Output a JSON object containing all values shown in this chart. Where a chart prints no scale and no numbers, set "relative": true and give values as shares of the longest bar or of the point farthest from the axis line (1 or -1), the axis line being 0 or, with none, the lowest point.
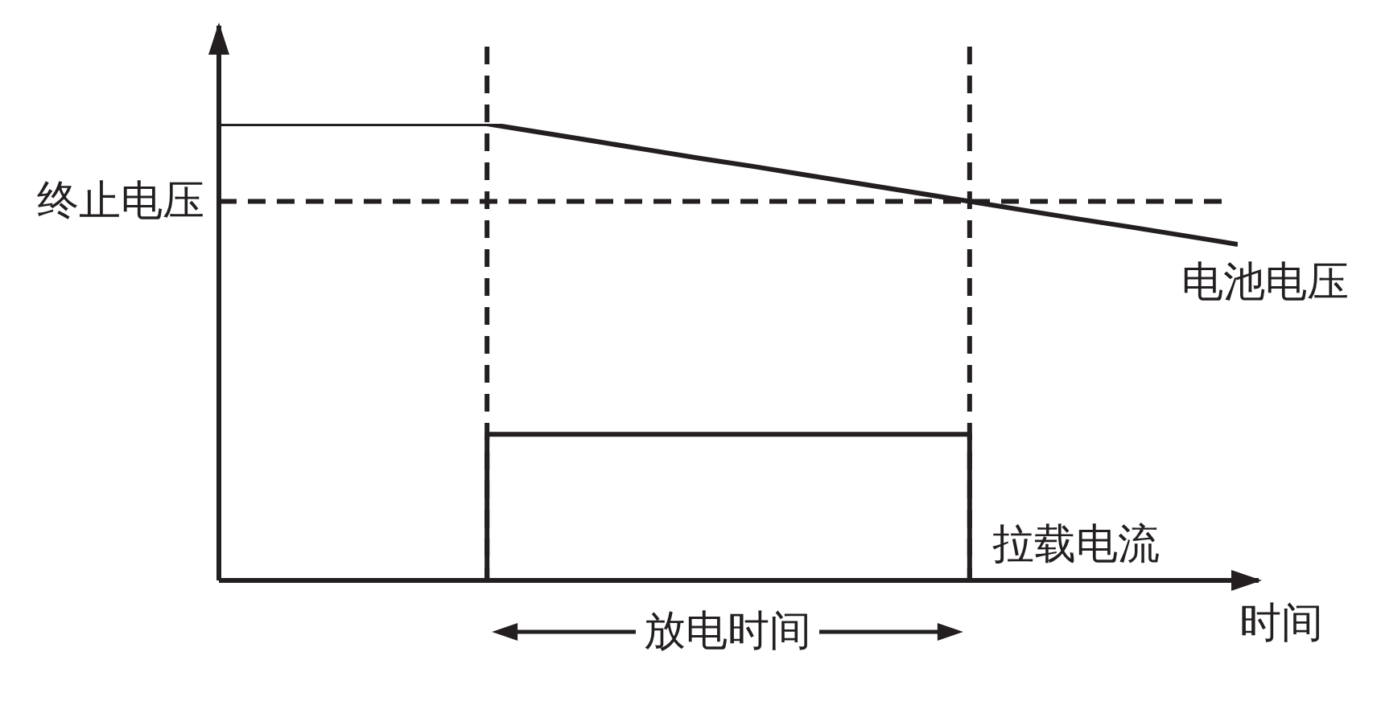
{
  "chart_data": {
    "type": "line",
    "relative": true,
    "xlabel": "时间",
    "categories": [
      null,
      null,
      null,
      null,
      null,
      null,
      null,
      null,
      null,
      null,
      null,
      null,
      null,
      null,
      null,
      null,
      null,
      null,
      null,
      null
    ],
    "series": [
      {
        "name": "电池电压",
        "color": "#231f20",
        "values": [
          1,
          1,
          1,
          1,
          1,
          1,
          0.981,
          0.962,
          0.943,
          0.924,
          0.906,
          0.887,
          0.868,
          0.849,
          0.83,
          0.811,
          0.792,
          0.774,
          0.755,
          0.736
        ]
      },
      {
        "name": "拉载电流",
        "type": "step",
        "color": "#231f20",
        "values": [
          null,
          null,
          null,
          null,
          null,
          0,
          0.32,
          0.32,
          0.32,
          0.32,
          0.32,
          0.32,
          0.32,
          0.32,
          0.32,
          0,
          null,
          null,
          null,
          null
        ]
      }
    ],
    "ref_lines": [
      {
        "axis": "y",
        "value": 0.83,
        "label": "终止电压",
        "line_style": "dashed",
        "color": "#231f20"
      }
    ],
    "annotations": [
      "放电时间"
    ]
  }
}
